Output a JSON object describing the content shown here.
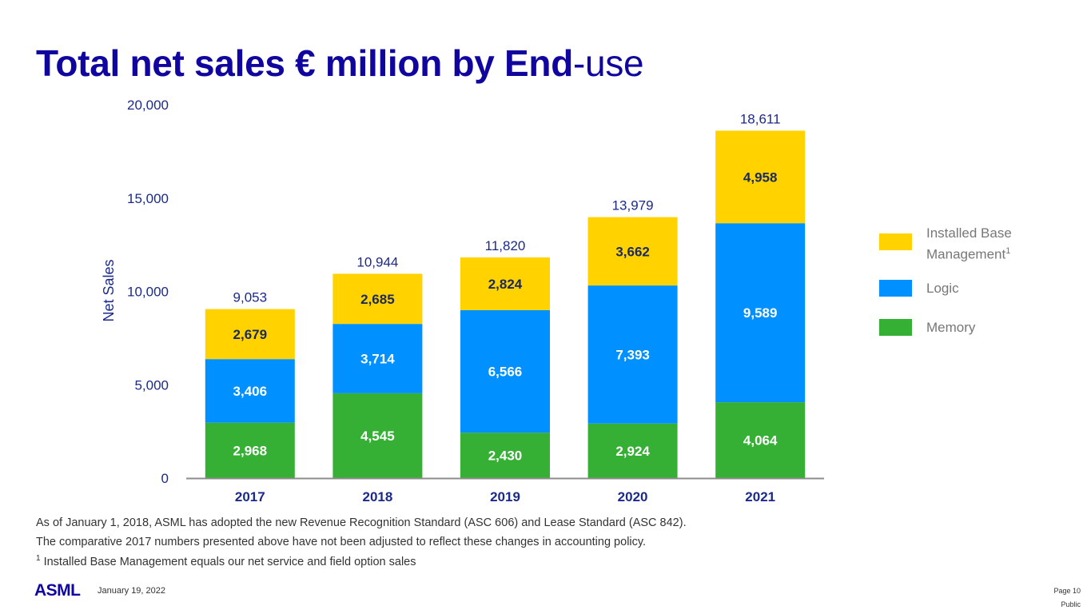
{
  "slide": {
    "title_bold": "Total net sales € million by End",
    "title_light": "-use",
    "notes": [
      "As of January 1, 2018, ASML has adopted the new Revenue Recognition Standard (ASC 606) and Lease Standard (ASC 842).",
      "The comparative 2017 numbers presented above have not been adjusted to reflect these changes in accounting policy."
    ],
    "footnote_marker": "1",
    "footnote_text": " Installed Base Management equals our net service and field option sales",
    "logo": "ASML",
    "date": "January 19, 2022",
    "page": "Page 10",
    "classification": "Public"
  },
  "chart_data": {
    "type": "bar",
    "stacked": true,
    "title": "Total net sales € million by End-use",
    "xlabel": "",
    "ylabel": "Net Sales",
    "ylim": [
      0,
      20000
    ],
    "yticks": [
      0,
      5000,
      10000,
      15000,
      20000
    ],
    "ytick_labels": [
      "0",
      "5,000",
      "10,000",
      "15,000",
      "20,000"
    ],
    "grid": false,
    "legend_position": "right",
    "categories": [
      "2017",
      "2018",
      "2019",
      "2020",
      "2021"
    ],
    "series": [
      {
        "name": "Memory",
        "color": "#35b035",
        "label_color": "#ffffff",
        "values": [
          2968,
          4545,
          2430,
          2924,
          4064
        ],
        "labels": [
          "2,968",
          "4,545",
          "2,430",
          "2,924",
          "4,064"
        ]
      },
      {
        "name": "Logic",
        "color": "#0090ff",
        "label_color": "#ffffff",
        "values": [
          3406,
          3714,
          6566,
          7393,
          9589
        ],
        "labels": [
          "3,406",
          "3,714",
          "6,566",
          "7,393",
          "9,589"
        ]
      },
      {
        "name": "Installed Base Management",
        "superscript": "1",
        "color": "#ffd200",
        "label_color": "#1b2a5a",
        "values": [
          2679,
          2685,
          2824,
          3662,
          4958
        ],
        "labels": [
          "2,679",
          "2,685",
          "2,824",
          "3,662",
          "4,958"
        ]
      }
    ],
    "totals": [
      9053,
      10944,
      11820,
      13979,
      18611
    ],
    "total_labels": [
      "9,053",
      "10,944",
      "11,820",
      "13,979",
      "18,611"
    ],
    "legend": [
      {
        "name": "Installed Base Management",
        "line1": "Installed Base",
        "line2": "Management",
        "superscript": "1",
        "color": "#ffd200"
      },
      {
        "name": "Logic",
        "line1": "Logic",
        "color": "#0090ff"
      },
      {
        "name": "Memory",
        "line1": "Memory",
        "color": "#35b035"
      }
    ]
  }
}
